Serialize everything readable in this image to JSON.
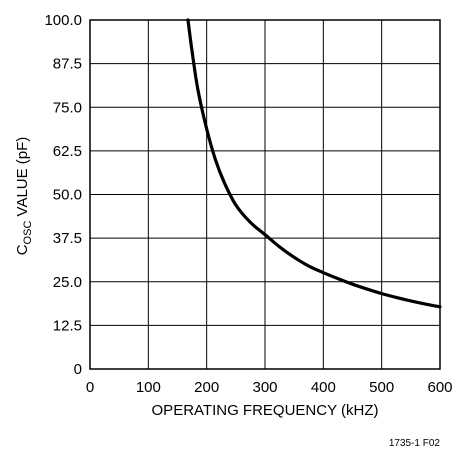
{
  "chart_data": {
    "type": "line",
    "xlabel": "OPERATING FREQUENCY (kHZ)",
    "ylabel": {
      "main": "C",
      "subscript": "OSC",
      "rest": " VALUE (pF)"
    },
    "figure_code": "1735-1 F02",
    "xlim": [
      0,
      600
    ],
    "ylim": [
      0,
      100
    ],
    "x_ticks": [
      "0",
      "100",
      "200",
      "300",
      "400",
      "500",
      "600"
    ],
    "y_ticks": [
      "0",
      "12.5",
      "25.0",
      "37.5",
      "50.0",
      "62.5",
      "75.0",
      "87.5",
      "100.0"
    ],
    "grid": true,
    "series": [
      {
        "x": [
          168,
          175,
          185,
          200,
          215,
          230,
          250,
          275,
          300,
          325,
          350,
          375,
          400,
          425,
          450,
          475,
          500,
          525,
          550,
          575,
          600
        ],
        "y": [
          100,
          91,
          80,
          68.8,
          60,
          53.5,
          47,
          42,
          38.5,
          35,
          32,
          29.5,
          27.6,
          25.9,
          24.3,
          22.9,
          21.6,
          20.5,
          19.5,
          18.6,
          17.8
        ]
      }
    ],
    "colors": {
      "curve": "#000000",
      "grid": "#000000"
    }
  }
}
